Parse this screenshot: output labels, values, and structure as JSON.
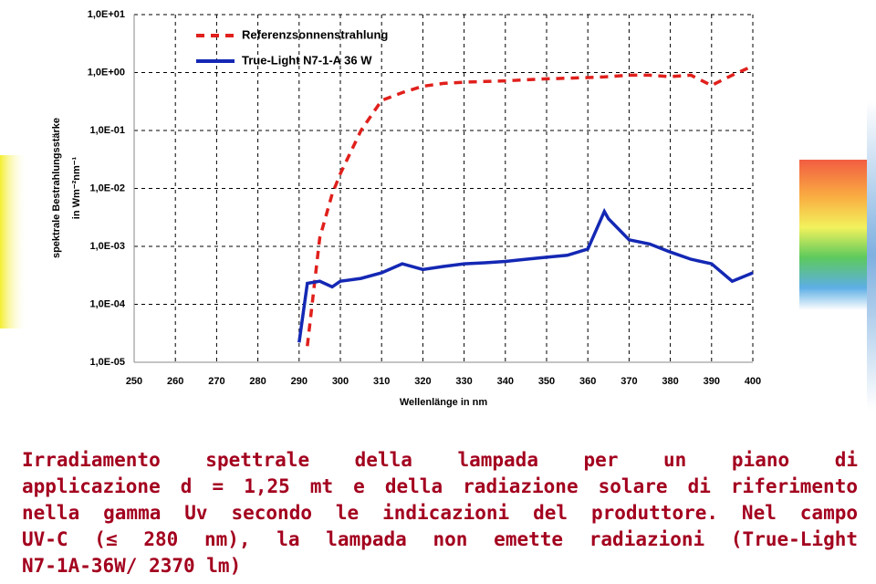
{
  "chart_data": {
    "type": "line",
    "ylabel": [
      "spektrale Bestrahlungsstärke",
      "in Wm⁻²nm⁻¹"
    ],
    "xlabel": "Wellenlänge in nm",
    "x": [
      290,
      292,
      295,
      298,
      300,
      305,
      310,
      315,
      320,
      325,
      330,
      335,
      340,
      345,
      350,
      355,
      360,
      364,
      365,
      370,
      375,
      380,
      385,
      390,
      395,
      400
    ],
    "series": [
      {
        "name": "Referenzsonnenstrahlung",
        "color": "#e0201c",
        "line_style": "dashed",
        "values": [
          null,
          1.9e-05,
          0.0014,
          0.008,
          0.018,
          0.1,
          0.33,
          0.45,
          0.58,
          0.65,
          0.68,
          0.7,
          0.72,
          0.75,
          0.78,
          0.8,
          0.82,
          0.84,
          0.85,
          0.9,
          0.9,
          0.85,
          0.9,
          0.6,
          0.9,
          1.3
        ]
      },
      {
        "name": "True-Light N7-1-A 36 W",
        "color": "#1428b4",
        "line_style": "solid",
        "values": [
          2.2e-05,
          0.00023,
          0.00025,
          0.0002,
          0.00025,
          0.00028,
          0.00035,
          0.0005,
          0.0004,
          0.00045,
          0.0005,
          0.00052,
          0.00055,
          0.0006,
          0.00065,
          0.0007,
          0.0009,
          0.004,
          0.003,
          0.0013,
          0.0011,
          0.0008,
          0.0006,
          0.0005,
          0.00025,
          0.00035
        ]
      }
    ],
    "xlim": [
      250,
      400
    ],
    "xticks": [
      250,
      260,
      270,
      280,
      290,
      300,
      310,
      320,
      330,
      340,
      350,
      360,
      370,
      380,
      390,
      400
    ],
    "ylim": [
      1e-05,
      10
    ],
    "log_y": true,
    "yticks": [
      {
        "value": 1e-05,
        "label": "1,0E-05"
      },
      {
        "value": 0.0001,
        "label": "1,0E-04"
      },
      {
        "value": 0.001,
        "label": "1,0E-03"
      },
      {
        "value": 0.01,
        "label": "1,0E-02"
      },
      {
        "value": 0.1,
        "label": "1,0E-01"
      },
      {
        "value": 1,
        "label": "1,0E+00"
      },
      {
        "value": 10,
        "label": "1,0E+01"
      }
    ],
    "grid": true,
    "legend": "upper left"
  },
  "caption": [
    "Irradiamento spettrale della lampada per un piano di",
    "applicazione d = 1,25 mt e della radiazione solare di riferimento",
    "nella gamma Uv secondo le indicazioni del produttore. Nel campo",
    "UV-C (≤ 280 nm), la lampada non emette radiazioni (True-Light",
    "N7-1A-36W/ 2370 lm)"
  ]
}
